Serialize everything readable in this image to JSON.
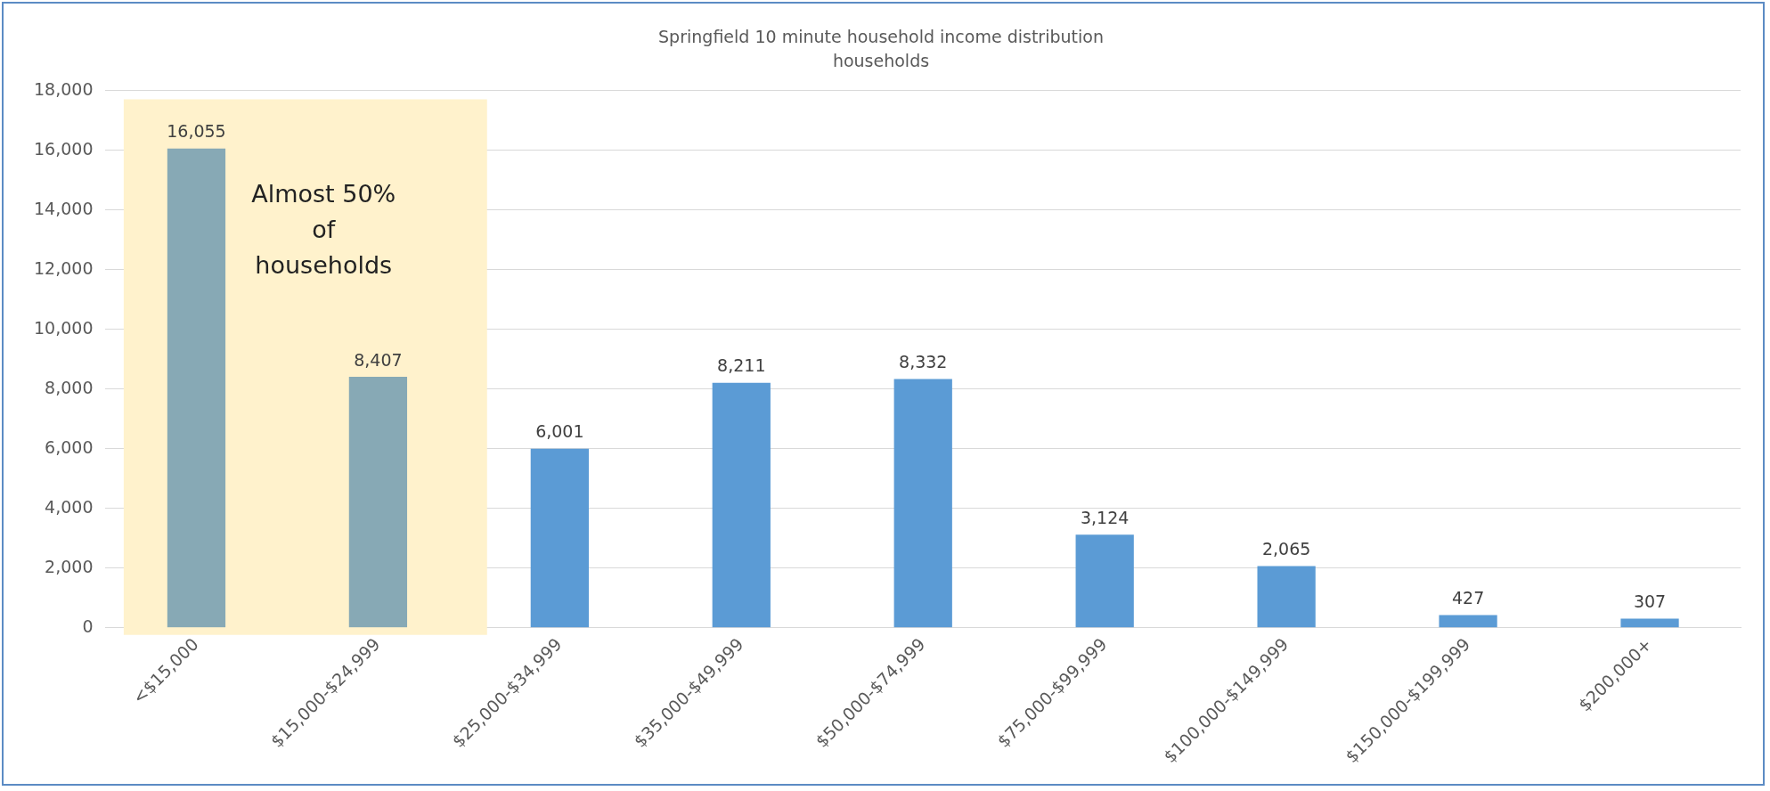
{
  "chart_data": {
    "type": "bar",
    "title": "Springfield 10 minute household income distribution",
    "subtitle": "households",
    "categories": [
      "<$15,000",
      "$15,000-$24,999",
      "$25,000-$34,999",
      "$35,000-$49,999",
      "$50,000-$74,999",
      "$75,000-$99,999",
      "$100,000-$149,999",
      "$150,000-$199,999",
      "$200,000+"
    ],
    "values": [
      16055,
      8407,
      6001,
      8211,
      8332,
      3124,
      2065,
      427,
      307
    ],
    "colors": [
      "#87a9b5",
      "#87a9b5",
      "#5b9bd5",
      "#5b9bd5",
      "#5b9bd5",
      "#5b9bd5",
      "#5b9bd5",
      "#5b9bd5",
      "#5b9bd5"
    ],
    "value_labels": [
      "16,055",
      "8,407",
      "6,001",
      "8,211",
      "8,332",
      "3,124",
      "2,065",
      "427",
      "307"
    ],
    "ylim": [
      0,
      18000
    ],
    "yticks": [
      0,
      {
        "value": 2000,
        "label": "2,000"
      },
      {
        "value": 4000,
        "label": "4,000"
      },
      {
        "value": 6000,
        "label": "6,000"
      },
      {
        "value": 8000,
        "label": "8,000"
      },
      {
        "value": 10000,
        "label": "10,000"
      },
      {
        "value": 12000,
        "label": "12,000"
      },
      {
        "value": 14000,
        "label": "14,000"
      },
      {
        "value": 16000,
        "label": "16,000"
      },
      {
        "value": 18000,
        "label": "18,000"
      }
    ],
    "grid": "y",
    "legend": false,
    "bands": [
      {
        "axis": "x",
        "from": "<$15,000",
        "to": "$15,000-$24,999",
        "label": "Almost 50% of households",
        "color": "#fff2cc"
      }
    ]
  }
}
